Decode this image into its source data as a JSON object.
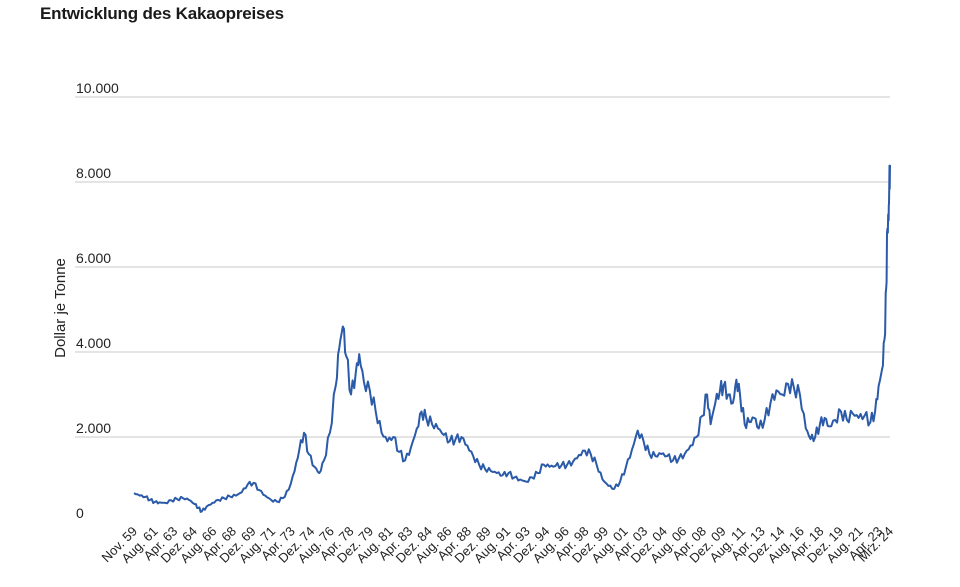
{
  "chart_data": {
    "type": "line",
    "title": "Entwicklung des Kakaopreises",
    "ylabel": "Dollar je Tonne",
    "xlabel": "",
    "ylim": [
      0,
      10000
    ],
    "yticks": [
      "0",
      "2.000",
      "4.000",
      "6.000",
      "8.000",
      "10.000"
    ],
    "ytick_values": [
      0,
      2000,
      4000,
      6000,
      8000,
      10000
    ],
    "xrange": [
      1959.83,
      2024.17
    ],
    "xticks": [
      {
        "label": "Nov. 59",
        "x": 1959.83
      },
      {
        "label": "Aug. 61",
        "x": 1961.58
      },
      {
        "label": "Apr. 63",
        "x": 1963.25
      },
      {
        "label": "Dez. 64",
        "x": 1964.92
      },
      {
        "label": "Aug. 66",
        "x": 1966.58
      },
      {
        "label": "Apr. 68",
        "x": 1968.25
      },
      {
        "label": "Dez. 69",
        "x": 1969.92
      },
      {
        "label": "Aug. 71",
        "x": 1971.58
      },
      {
        "label": "Apr. 73",
        "x": 1973.25
      },
      {
        "label": "Dez. 74",
        "x": 1974.92
      },
      {
        "label": "Aug. 76",
        "x": 1976.58
      },
      {
        "label": "Apr. 78",
        "x": 1978.25
      },
      {
        "label": "Dez. 79",
        "x": 1979.92
      },
      {
        "label": "Aug. 81",
        "x": 1981.58
      },
      {
        "label": "Apr. 83",
        "x": 1983.25
      },
      {
        "label": "Dez. 84",
        "x": 1984.92
      },
      {
        "label": "Aug. 86",
        "x": 1986.58
      },
      {
        "label": "Apr. 88",
        "x": 1988.25
      },
      {
        "label": "Dez. 89",
        "x": 1989.92
      },
      {
        "label": "Aug. 91",
        "x": 1991.58
      },
      {
        "label": "Apr. 93",
        "x": 1993.25
      },
      {
        "label": "Dez. 94",
        "x": 1994.92
      },
      {
        "label": "Aug. 96",
        "x": 1996.58
      },
      {
        "label": "Apr. 98",
        "x": 1998.25
      },
      {
        "label": "Dez. 99",
        "x": 1999.92
      },
      {
        "label": "Aug. 01",
        "x": 2001.58
      },
      {
        "label": "Apr. 03",
        "x": 2003.25
      },
      {
        "label": "Dez. 04",
        "x": 2004.92
      },
      {
        "label": "Aug. 06",
        "x": 2006.58
      },
      {
        "label": "Apr. 08",
        "x": 2008.25
      },
      {
        "label": "Dez. 09",
        "x": 2009.92
      },
      {
        "label": "Aug. 11",
        "x": 2011.58
      },
      {
        "label": "Apr. 13",
        "x": 2013.25
      },
      {
        "label": "Dez. 14",
        "x": 2014.92
      },
      {
        "label": "Aug. 16",
        "x": 2016.58
      },
      {
        "label": "Apr. 18",
        "x": 2018.25
      },
      {
        "label": "Dez. 19",
        "x": 2019.92
      },
      {
        "label": "Aug. 21",
        "x": 2021.58
      },
      {
        "label": "Apr. 23",
        "x": 2023.25
      },
      {
        "label": "Mrz. 24",
        "x": 2024.17
      }
    ],
    "grid": true,
    "legend": "none",
    "series": [
      {
        "color": "#2a5aa8",
        "points": [
          [
            1959.83,
            680
          ],
          [
            1960.3,
            620
          ],
          [
            1960.8,
            590
          ],
          [
            1961.2,
            520
          ],
          [
            1961.6,
            470
          ],
          [
            1962.0,
            460
          ],
          [
            1962.5,
            450
          ],
          [
            1963.0,
            510
          ],
          [
            1963.5,
            540
          ],
          [
            1964.0,
            560
          ],
          [
            1964.5,
            520
          ],
          [
            1965.0,
            420
          ],
          [
            1965.3,
            330
          ],
          [
            1965.6,
            250
          ],
          [
            1966.0,
            360
          ],
          [
            1966.5,
            450
          ],
          [
            1967.0,
            520
          ],
          [
            1967.5,
            560
          ],
          [
            1968.0,
            600
          ],
          [
            1968.5,
            620
          ],
          [
            1969.0,
            700
          ],
          [
            1969.5,
            880
          ],
          [
            1970.0,
            920
          ],
          [
            1970.5,
            750
          ],
          [
            1971.0,
            620
          ],
          [
            1971.5,
            520
          ],
          [
            1972.0,
            480
          ],
          [
            1972.5,
            560
          ],
          [
            1973.0,
            760
          ],
          [
            1973.5,
            1200
          ],
          [
            1973.9,
            1700
          ],
          [
            1974.3,
            2100
          ],
          [
            1974.7,
            1600
          ],
          [
            1975.2,
            1300
          ],
          [
            1975.6,
            1150
          ],
          [
            1976.0,
            1450
          ],
          [
            1976.5,
            2100
          ],
          [
            1977.0,
            3200
          ],
          [
            1977.3,
            4100
          ],
          [
            1977.6,
            4600
          ],
          [
            1977.9,
            3900
          ],
          [
            1978.3,
            3000
          ],
          [
            1978.7,
            3500
          ],
          [
            1979.0,
            3950
          ],
          [
            1979.4,
            3300
          ],
          [
            1979.9,
            3100
          ],
          [
            1980.4,
            2600
          ],
          [
            1980.9,
            2100
          ],
          [
            1981.4,
            1900
          ],
          [
            1981.9,
            2000
          ],
          [
            1982.4,
            1650
          ],
          [
            1982.9,
            1450
          ],
          [
            1983.4,
            1750
          ],
          [
            1983.9,
            2200
          ],
          [
            1984.3,
            2600
          ],
          [
            1984.7,
            2450
          ],
          [
            1985.2,
            2300
          ],
          [
            1985.7,
            2200
          ],
          [
            1986.2,
            2050
          ],
          [
            1986.7,
            1900
          ],
          [
            1987.2,
            1950
          ],
          [
            1987.7,
            2000
          ],
          [
            1988.2,
            1800
          ],
          [
            1988.7,
            1550
          ],
          [
            1989.2,
            1350
          ],
          [
            1989.7,
            1250
          ],
          [
            1990.2,
            1200
          ],
          [
            1990.7,
            1150
          ],
          [
            1991.2,
            1100
          ],
          [
            1991.7,
            1150
          ],
          [
            1992.2,
            1050
          ],
          [
            1992.7,
            1000
          ],
          [
            1993.2,
            950
          ],
          [
            1993.7,
            1050
          ],
          [
            1994.2,
            1150
          ],
          [
            1994.7,
            1350
          ],
          [
            1995.2,
            1300
          ],
          [
            1995.7,
            1320
          ],
          [
            1996.2,
            1330
          ],
          [
            1996.7,
            1350
          ],
          [
            1997.2,
            1420
          ],
          [
            1997.7,
            1580
          ],
          [
            1998.2,
            1680
          ],
          [
            1998.7,
            1600
          ],
          [
            1999.2,
            1350
          ],
          [
            1999.7,
            1000
          ],
          [
            2000.2,
            850
          ],
          [
            2000.7,
            780
          ],
          [
            2001.2,
            950
          ],
          [
            2001.7,
            1300
          ],
          [
            2002.2,
            1700
          ],
          [
            2002.7,
            2150
          ],
          [
            2003.2,
            1900
          ],
          [
            2003.7,
            1600
          ],
          [
            2004.2,
            1550
          ],
          [
            2004.7,
            1600
          ],
          [
            2005.2,
            1550
          ],
          [
            2005.7,
            1450
          ],
          [
            2006.2,
            1500
          ],
          [
            2006.7,
            1600
          ],
          [
            2007.2,
            1800
          ],
          [
            2007.7,
            2000
          ],
          [
            2008.2,
            2500
          ],
          [
            2008.6,
            3000
          ],
          [
            2008.9,
            2300
          ],
          [
            2009.3,
            2800
          ],
          [
            2009.7,
            3100
          ],
          [
            2010.0,
            3200
          ],
          [
            2010.4,
            3000
          ],
          [
            2010.8,
            2800
          ],
          [
            2011.1,
            3350
          ],
          [
            2011.4,
            3000
          ],
          [
            2011.8,
            2300
          ],
          [
            2012.2,
            2350
          ],
          [
            2012.6,
            2450
          ],
          [
            2013.0,
            2200
          ],
          [
            2013.5,
            2400
          ],
          [
            2014.0,
            2800
          ],
          [
            2014.5,
            3100
          ],
          [
            2015.0,
            3000
          ],
          [
            2015.5,
            3250
          ],
          [
            2016.0,
            3150
          ],
          [
            2016.5,
            3000
          ],
          [
            2017.0,
            2200
          ],
          [
            2017.4,
            1950
          ],
          [
            2017.8,
            2000
          ],
          [
            2018.2,
            2300
          ],
          [
            2018.6,
            2450
          ],
          [
            2019.0,
            2250
          ],
          [
            2019.5,
            2400
          ],
          [
            2020.0,
            2600
          ],
          [
            2020.5,
            2400
          ],
          [
            2021.0,
            2550
          ],
          [
            2021.5,
            2450
          ],
          [
            2022.0,
            2500
          ],
          [
            2022.5,
            2350
          ],
          [
            2022.9,
            2600
          ],
          [
            2023.2,
            3200
          ],
          [
            2023.5,
            3600
          ],
          [
            2023.7,
            4300
          ],
          [
            2023.85,
            5500
          ],
          [
            2023.95,
            6900
          ],
          [
            2024.05,
            7100
          ],
          [
            2024.1,
            7800
          ],
          [
            2024.17,
            8400
          ]
        ]
      }
    ]
  }
}
